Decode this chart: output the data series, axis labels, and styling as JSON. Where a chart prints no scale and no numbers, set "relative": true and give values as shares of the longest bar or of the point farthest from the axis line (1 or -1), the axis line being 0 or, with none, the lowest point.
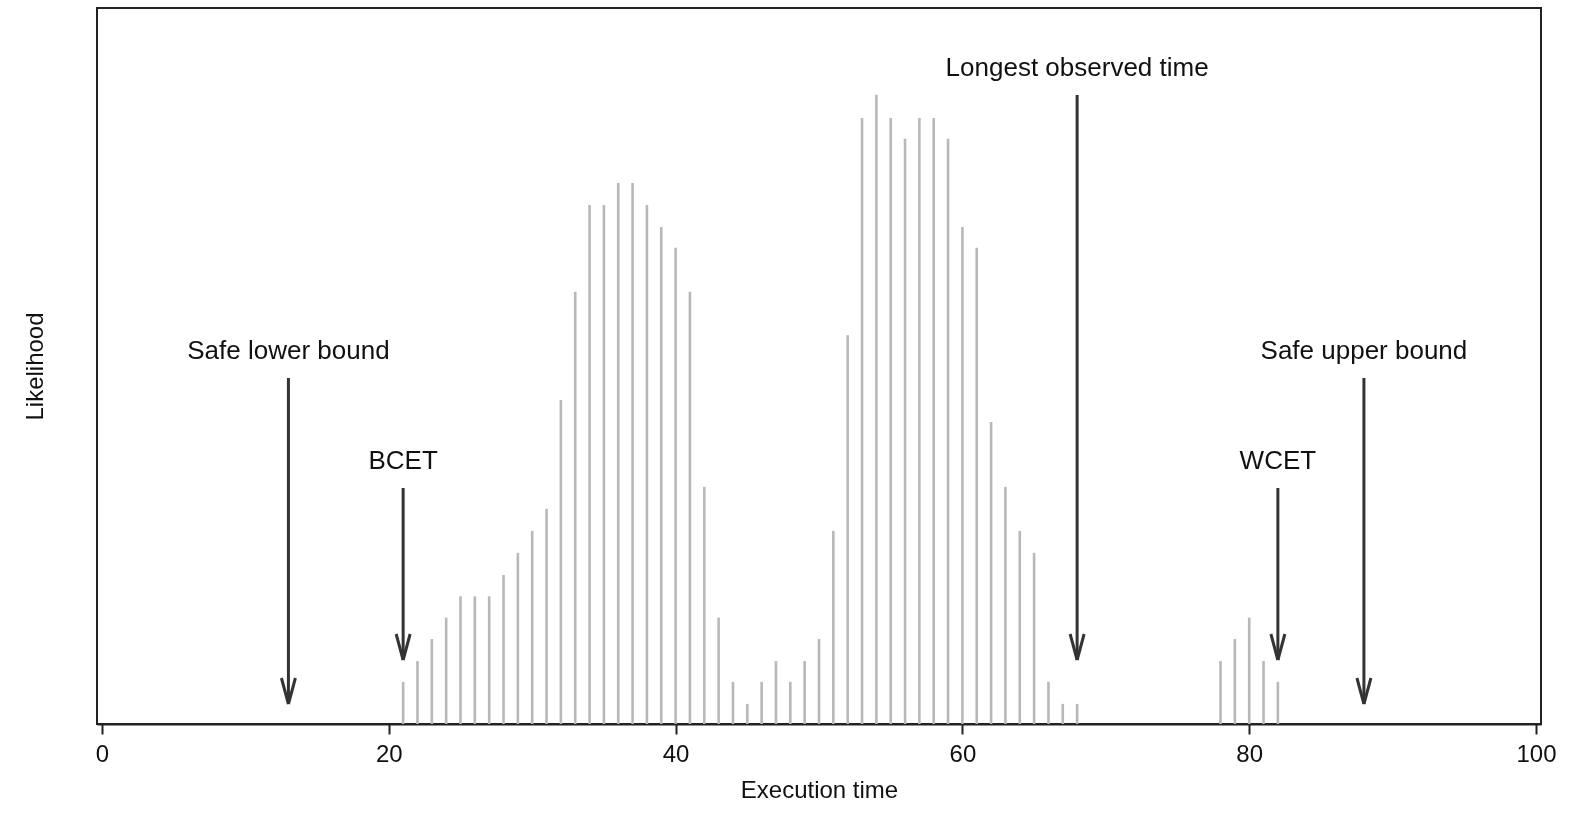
{
  "chart_data": {
    "type": "bar",
    "relative": true,
    "xlabel": "Execution time",
    "ylabel": "Likelihood",
    "color": "#b8b8b8",
    "xlim": [
      0,
      100
    ],
    "xticks": [
      0,
      20,
      40,
      60,
      80,
      100
    ],
    "x": [
      21,
      22,
      23,
      24,
      25,
      26,
      27,
      28,
      29,
      30,
      31,
      32,
      33,
      34,
      35,
      36,
      37,
      38,
      39,
      40,
      41,
      42,
      43,
      44,
      45,
      46,
      47,
      48,
      49,
      50,
      51,
      52,
      53,
      54,
      55,
      56,
      57,
      58,
      59,
      60,
      61,
      62,
      63,
      64,
      65,
      66,
      67,
      68,
      78,
      79,
      80,
      81,
      82
    ],
    "values": [
      0.067,
      0.1,
      0.135,
      0.169,
      0.203,
      0.203,
      0.203,
      0.237,
      0.272,
      0.307,
      0.342,
      0.515,
      0.687,
      0.825,
      0.825,
      0.86,
      0.86,
      0.825,
      0.79,
      0.757,
      0.687,
      0.377,
      0.169,
      0.067,
      0.032,
      0.067,
      0.1,
      0.067,
      0.1,
      0.135,
      0.307,
      0.618,
      0.963,
      1,
      0.963,
      0.93,
      0.963,
      0.963,
      0.93,
      0.79,
      0.757,
      0.48,
      0.377,
      0.307,
      0.272,
      0.067,
      0.032,
      0.032,
      0.1,
      0.135,
      0.169,
      0.1,
      0.067
    ],
    "ref_lines": [
      {
        "axis": "x",
        "value": 13,
        "label": "Safe lower bound",
        "color": "#333333"
      },
      {
        "axis": "x",
        "value": 21,
        "label": "BCET",
        "color": "#333333"
      },
      {
        "axis": "x",
        "value": 68,
        "label": "Longest observed time",
        "color": "#333333"
      },
      {
        "axis": "x",
        "value": 82,
        "label": "WCET",
        "color": "#333333"
      },
      {
        "axis": "x",
        "value": 88,
        "label": "Safe upper bound",
        "color": "#333333"
      }
    ]
  }
}
